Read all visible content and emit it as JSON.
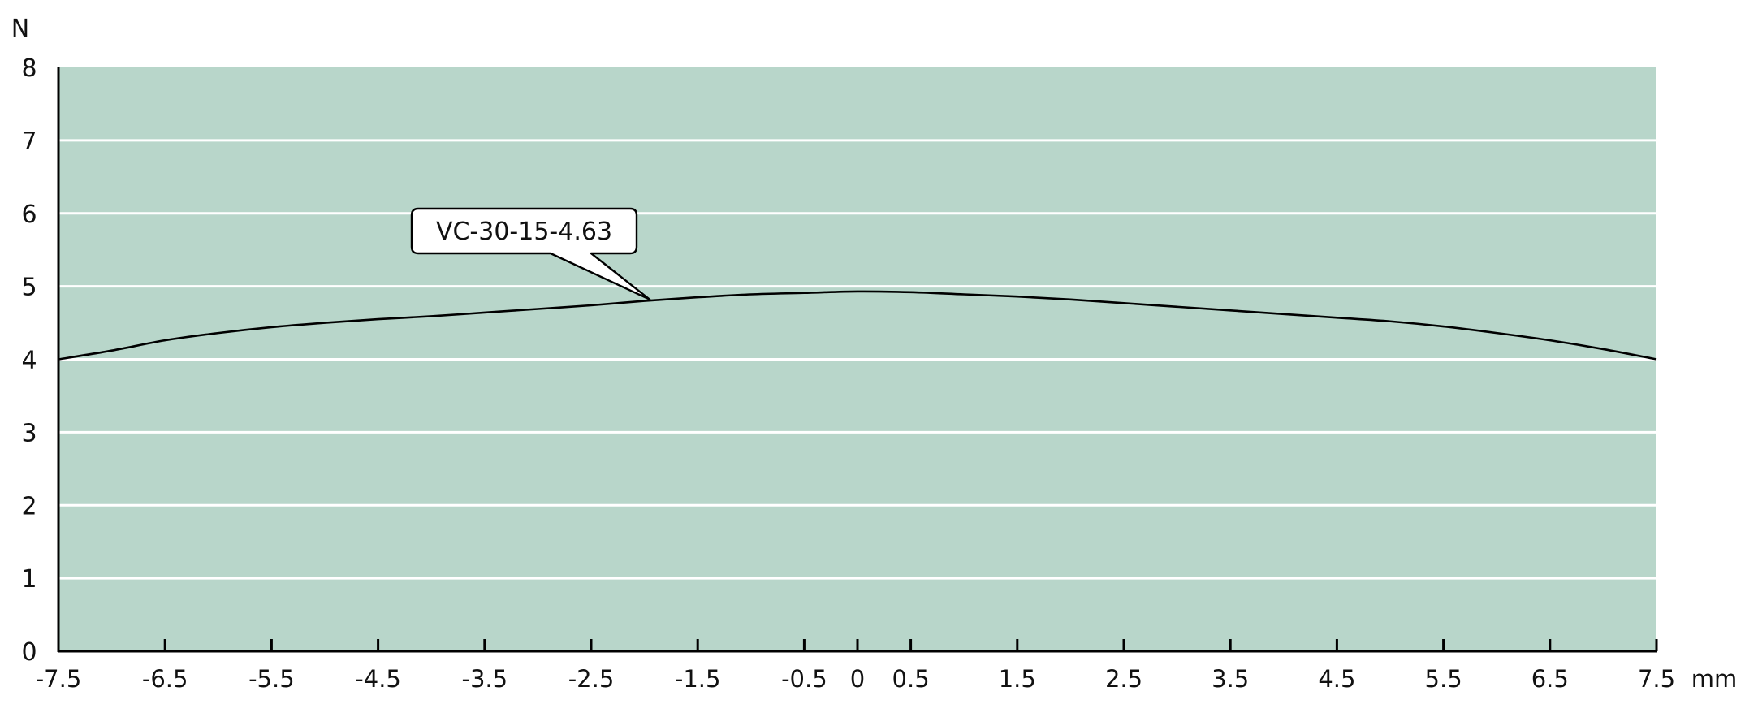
{
  "chart_data": {
    "type": "line",
    "xlabel": "mm",
    "ylabel": "N",
    "xlim": [
      -7.5,
      7.5
    ],
    "ylim": [
      0,
      8
    ],
    "x_ticks": [
      "-7.5",
      "-6.5",
      "-5.5",
      "-4.5",
      "-3.5",
      "-2.5",
      "-1.5",
      "-0.5",
      "0",
      "0.5",
      "1.5",
      "2.5",
      "3.5",
      "4.5",
      "5.5",
      "6.5",
      "7.5"
    ],
    "y_ticks": [
      "0",
      "1",
      "2",
      "3",
      "4",
      "5",
      "6",
      "7",
      "8"
    ],
    "grid": true,
    "series": [
      {
        "name": "VC-30-15-4.63",
        "x": [
          -7.5,
          -7.0,
          -6.5,
          -6.0,
          -5.5,
          -5.0,
          -4.5,
          -4.0,
          -3.5,
          -3.0,
          -2.5,
          -2.0,
          -1.5,
          -1.0,
          -0.5,
          0.0,
          0.5,
          1.0,
          1.5,
          2.0,
          2.5,
          3.0,
          3.5,
          4.0,
          4.5,
          5.0,
          5.5,
          6.0,
          6.5,
          7.0,
          7.5
        ],
        "y": [
          4.0,
          4.12,
          4.26,
          4.36,
          4.44,
          4.5,
          4.55,
          4.59,
          4.64,
          4.69,
          4.74,
          4.8,
          4.85,
          4.89,
          4.91,
          4.93,
          4.92,
          4.89,
          4.86,
          4.82,
          4.77,
          4.72,
          4.67,
          4.62,
          4.57,
          4.52,
          4.45,
          4.36,
          4.26,
          4.14,
          4.0
        ]
      }
    ],
    "annotations": [
      {
        "text": "VC-30-15-4.63",
        "x": -1.95,
        "y": 4.82
      }
    ],
    "colors": {
      "plot_background": "#b8d6ca",
      "gridline": "#ffffff",
      "line": "#000000",
      "axis": "#000000",
      "callout_fill": "#ffffff"
    }
  }
}
